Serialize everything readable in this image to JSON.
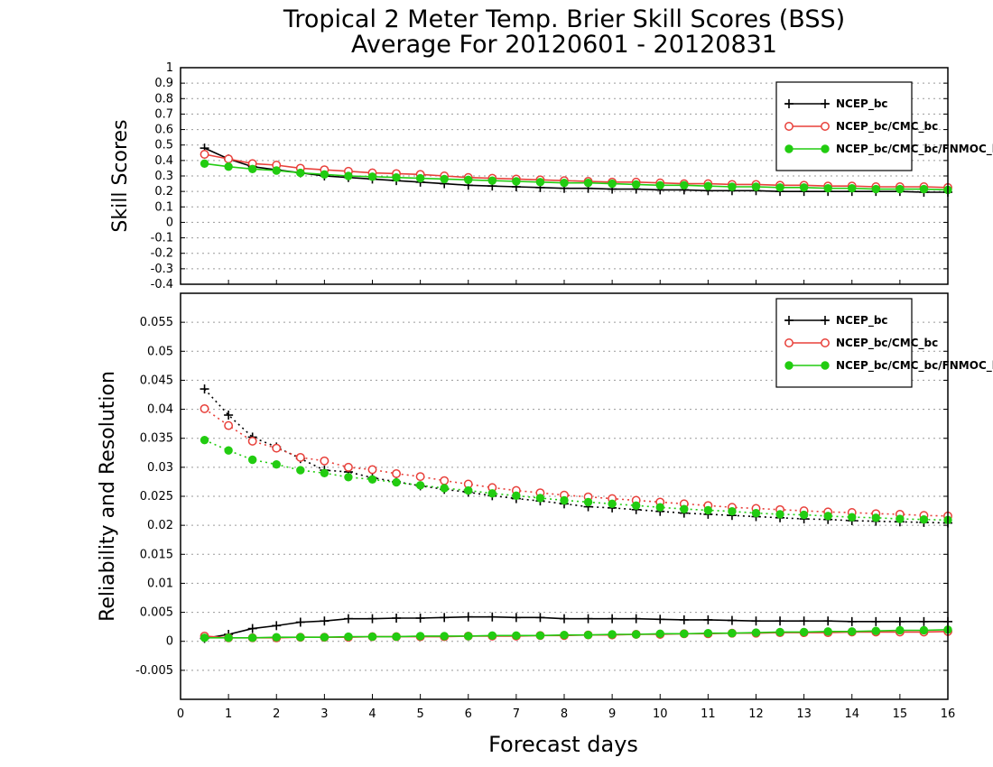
{
  "title_line1": "Tropical 2 Meter Temp. Brier Skill Scores (BSS)",
  "title_line2": "Average For 20120601 - 20120831",
  "colors": {
    "black": "#000000",
    "red": "#e8403a",
    "green": "#22cc11",
    "grid": "#9a9a9a"
  },
  "chart_data": [
    {
      "type": "line",
      "panel": "top",
      "ylabel": "Skill Scores",
      "ylim": [
        -0.4,
        1.0
      ],
      "yticks": [
        "1",
        "0.9",
        "0.8",
        "0.7",
        "0.6",
        "0.5",
        "0.4",
        "0.3",
        "0.2",
        "0.1",
        "0",
        "-0.1",
        "-0.2",
        "-0.3",
        "-0.4"
      ],
      "xlim": [
        0,
        16
      ],
      "legend_position": "top-right",
      "grid": true,
      "series": [
        {
          "name": "NCEP_bc",
          "color": "black",
          "marker": "plus",
          "x": [
            0.5,
            1,
            1.5,
            2,
            2.5,
            3,
            3.5,
            4,
            4.5,
            5,
            5.5,
            6,
            6.5,
            7,
            7.5,
            8,
            8.5,
            9,
            9.5,
            10,
            10.5,
            11,
            11.5,
            12,
            12.5,
            13,
            13.5,
            14,
            14.5,
            15,
            15.5,
            16
          ],
          "y": [
            0.48,
            0.41,
            0.36,
            0.34,
            0.32,
            0.3,
            0.29,
            0.28,
            0.27,
            0.26,
            0.25,
            0.24,
            0.235,
            0.23,
            0.225,
            0.22,
            0.22,
            0.215,
            0.215,
            0.21,
            0.21,
            0.205,
            0.205,
            0.205,
            0.2,
            0.2,
            0.2,
            0.2,
            0.2,
            0.2,
            0.195,
            0.195
          ]
        },
        {
          "name": "NCEP_bc/CMC_bc",
          "color": "red",
          "marker": "open-circle",
          "x": [
            0.5,
            1,
            1.5,
            2,
            2.5,
            3,
            3.5,
            4,
            4.5,
            5,
            5.5,
            6,
            6.5,
            7,
            7.5,
            8,
            8.5,
            9,
            9.5,
            10,
            10.5,
            11,
            11.5,
            12,
            12.5,
            13,
            13.5,
            14,
            14.5,
            15,
            15.5,
            16
          ],
          "y": [
            0.44,
            0.41,
            0.38,
            0.37,
            0.35,
            0.34,
            0.33,
            0.32,
            0.315,
            0.31,
            0.3,
            0.29,
            0.285,
            0.28,
            0.275,
            0.27,
            0.265,
            0.26,
            0.26,
            0.255,
            0.25,
            0.25,
            0.245,
            0.245,
            0.24,
            0.24,
            0.235,
            0.235,
            0.23,
            0.23,
            0.23,
            0.225
          ]
        },
        {
          "name": "NCEP_bc/CMC_bc/FNMOC_bc",
          "color": "green",
          "marker": "filled-circle",
          "x": [
            0.5,
            1,
            1.5,
            2,
            2.5,
            3,
            3.5,
            4,
            4.5,
            5,
            5.5,
            6,
            6.5,
            7,
            7.5,
            8,
            8.5,
            9,
            9.5,
            10,
            10.5,
            11,
            11.5,
            12,
            12.5,
            13,
            13.5,
            14,
            14.5,
            15,
            15.5,
            16
          ],
          "y": [
            0.38,
            0.36,
            0.345,
            0.335,
            0.32,
            0.31,
            0.3,
            0.295,
            0.29,
            0.285,
            0.28,
            0.275,
            0.27,
            0.265,
            0.26,
            0.255,
            0.255,
            0.25,
            0.245,
            0.24,
            0.24,
            0.235,
            0.23,
            0.23,
            0.225,
            0.225,
            0.22,
            0.22,
            0.215,
            0.215,
            0.215,
            0.21
          ]
        }
      ]
    },
    {
      "type": "line",
      "panel": "bottom",
      "ylabel": "Reliability and Resolution",
      "xlabel": "Forecast days",
      "ylim": [
        -0.01,
        0.06
      ],
      "yticks": [
        "0.055",
        "0.05",
        "0.045",
        "0.04",
        "0.035",
        "0.03",
        "0.025",
        "0.02",
        "0.015",
        "0.01",
        "0.005",
        "0",
        "-0.005"
      ],
      "xlim": [
        0,
        16
      ],
      "xticks": [
        "0",
        "1",
        "2",
        "3",
        "4",
        "5",
        "6",
        "7",
        "8",
        "9",
        "10",
        "11",
        "12",
        "13",
        "14",
        "15",
        "16"
      ],
      "legend_position": "top-right",
      "grid": true,
      "series": [
        {
          "name": "NCEP_bc",
          "color": "black",
          "marker": "plus",
          "x": [
            0.5,
            1,
            1.5,
            2,
            2.5,
            3,
            3.5,
            4,
            4.5,
            5,
            5.5,
            6,
            6.5,
            7,
            7.5,
            8,
            8.5,
            9,
            9.5,
            10,
            10.5,
            11,
            11.5,
            12,
            12.5,
            13,
            13.5,
            14,
            14.5,
            15,
            15.5,
            16
          ],
          "resolution": [
            0.0435,
            0.039,
            0.0352,
            0.0335,
            0.0315,
            0.0295,
            0.0292,
            0.0282,
            0.0275,
            0.0268,
            0.0262,
            0.0257,
            0.0251,
            0.0246,
            0.0242,
            0.0237,
            0.0232,
            0.023,
            0.0227,
            0.0224,
            0.0221,
            0.0219,
            0.0217,
            0.0215,
            0.0213,
            0.0211,
            0.021,
            0.0208,
            0.0207,
            0.0206,
            0.0205,
            0.0204
          ],
          "reliability": [
            0.0005,
            0.0012,
            0.0022,
            0.0027,
            0.0033,
            0.0035,
            0.0039,
            0.0039,
            0.004,
            0.004,
            0.0041,
            0.0042,
            0.0042,
            0.0041,
            0.0041,
            0.0039,
            0.0039,
            0.0039,
            0.0039,
            0.0038,
            0.0037,
            0.0037,
            0.0036,
            0.0035,
            0.0035,
            0.0035,
            0.0035,
            0.0034,
            0.0034,
            0.0034,
            0.0034,
            0.0034
          ]
        },
        {
          "name": "NCEP_bc/CMC_bc",
          "color": "red",
          "marker": "open-circle",
          "x": [
            0.5,
            1,
            1.5,
            2,
            2.5,
            3,
            3.5,
            4,
            4.5,
            5,
            5.5,
            6,
            6.5,
            7,
            7.5,
            8,
            8.5,
            9,
            9.5,
            10,
            10.5,
            11,
            11.5,
            12,
            12.5,
            13,
            13.5,
            14,
            14.5,
            15,
            15.5,
            16
          ],
          "resolution": [
            0.0401,
            0.0372,
            0.0345,
            0.0333,
            0.0317,
            0.0311,
            0.03,
            0.0296,
            0.0289,
            0.0284,
            0.0277,
            0.0271,
            0.0265,
            0.026,
            0.0256,
            0.0252,
            0.0249,
            0.0246,
            0.0243,
            0.024,
            0.0237,
            0.0234,
            0.0231,
            0.0229,
            0.0227,
            0.0225,
            0.0223,
            0.0222,
            0.022,
            0.0219,
            0.0217,
            0.0216
          ],
          "reliability": [
            0.0009,
            0.0006,
            0.0006,
            0.0006,
            0.0007,
            0.0007,
            0.0007,
            0.0008,
            0.0008,
            0.0008,
            0.0008,
            0.0009,
            0.0009,
            0.0009,
            0.001,
            0.001,
            0.0011,
            0.0011,
            0.0012,
            0.0012,
            0.0013,
            0.0013,
            0.0014,
            0.0014,
            0.0015,
            0.0015,
            0.0015,
            0.0016,
            0.0016,
            0.0016,
            0.0016,
            0.0017
          ]
        },
        {
          "name": "NCEP_bc/CMC_bc/FNMOC_bc",
          "color": "green",
          "marker": "filled-circle",
          "x": [
            0.5,
            1,
            1.5,
            2,
            2.5,
            3,
            3.5,
            4,
            4.5,
            5,
            5.5,
            6,
            6.5,
            7,
            7.5,
            8,
            8.5,
            9,
            9.5,
            10,
            10.5,
            11,
            11.5,
            12,
            12.5,
            13,
            13.5,
            14,
            14.5,
            15,
            15.5,
            16
          ],
          "resolution": [
            0.0347,
            0.0329,
            0.0313,
            0.0305,
            0.0295,
            0.029,
            0.0283,
            0.0279,
            0.0274,
            0.0269,
            0.0264,
            0.026,
            0.0255,
            0.0251,
            0.0247,
            0.0243,
            0.024,
            0.0237,
            0.0234,
            0.0231,
            0.0228,
            0.0226,
            0.0224,
            0.0221,
            0.0219,
            0.0218,
            0.0216,
            0.0214,
            0.0213,
            0.0211,
            0.021,
            0.0209
          ],
          "reliability": [
            0.0006,
            0.0006,
            0.0006,
            0.0007,
            0.0007,
            0.0007,
            0.0008,
            0.0008,
            0.0008,
            0.0009,
            0.0009,
            0.0009,
            0.001,
            0.001,
            0.001,
            0.0011,
            0.0011,
            0.0012,
            0.0012,
            0.0013,
            0.0013,
            0.0014,
            0.0014,
            0.0015,
            0.0016,
            0.0016,
            0.0017,
            0.0017,
            0.0018,
            0.0019,
            0.0019,
            0.002
          ]
        }
      ]
    }
  ]
}
